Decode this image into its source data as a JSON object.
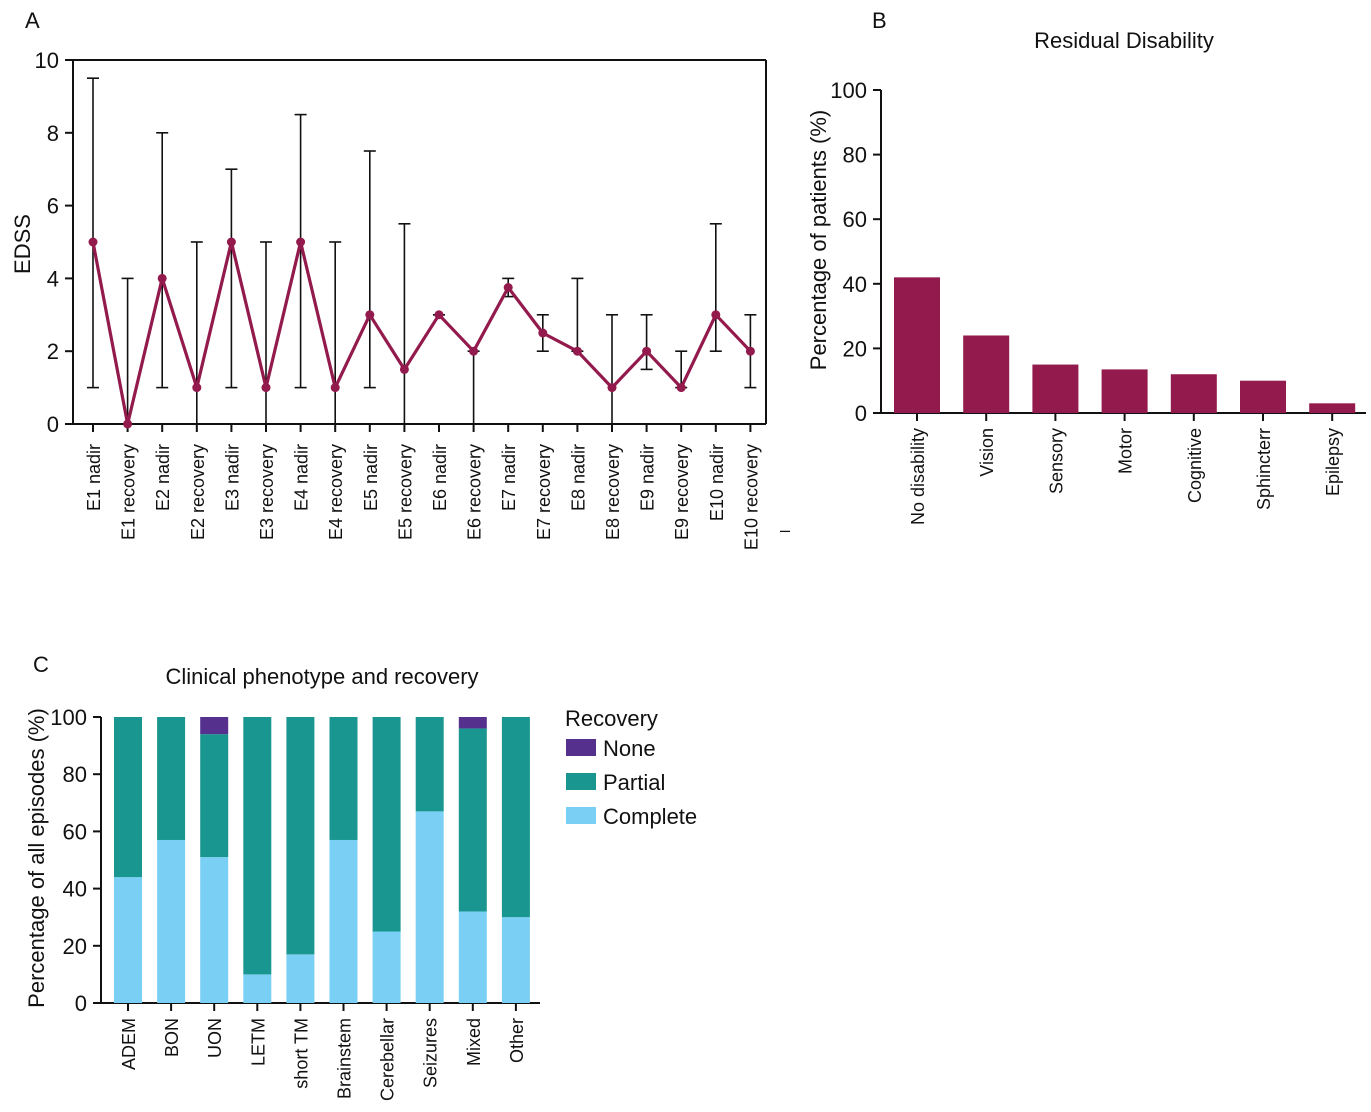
{
  "colors": {
    "maroon": "#931a4c",
    "none": "#55308d",
    "partial": "#1a9690",
    "complete": "#7ad0f4",
    "axis": "#111111"
  },
  "chart_data": [
    {
      "panel": "A",
      "type": "line",
      "title": "",
      "xlabel": "",
      "ylabel": "EDSS",
      "ylim": [
        0,
        10
      ],
      "yticks": [
        0,
        2,
        4,
        6,
        8,
        10
      ],
      "grid": false,
      "categories": [
        "E1 nadir",
        "E1 recovery",
        "E2 nadir",
        "E2 recovery",
        "E3 nadir",
        "E3 recovery",
        "E4 nadir",
        "E4 recovery",
        "E5 nadir",
        "E5 recovery",
        "E6 nadir",
        "E6 recovery",
        "E7 nadir",
        "E7 recovery",
        "E8 nadir",
        "E8 recovery",
        "E9 nadir",
        "E9 recovery",
        "E10 nadir",
        "E10 recovery"
      ],
      "series": [
        {
          "values": [
            5,
            0,
            4,
            1,
            5,
            1,
            5,
            1,
            3,
            1.5,
            3,
            2,
            3.75,
            2.5,
            2,
            1,
            2,
            1,
            3,
            2
          ],
          "error_low": [
            1,
            0,
            1,
            0,
            1,
            0,
            1,
            0,
            1,
            0,
            3,
            0,
            3.5,
            2,
            2,
            0,
            1.5,
            1,
            2,
            1
          ],
          "error_high": [
            9.5,
            4,
            8,
            5,
            7,
            5,
            8.5,
            5,
            7.5,
            5.5,
            3,
            2,
            4,
            3,
            4,
            3,
            3,
            2,
            5.5,
            3
          ]
        }
      ]
    },
    {
      "panel": "B",
      "type": "bar",
      "title": "Residual Disability",
      "xlabel": "",
      "ylabel": "Percentage of patients (%)",
      "ylim": [
        0,
        100
      ],
      "yticks": [
        0,
        20,
        40,
        60,
        80,
        100
      ],
      "grid": false,
      "categories": [
        "No disability",
        "Vision",
        "Sensory",
        "Motor",
        "Cognitive",
        "Sphincterr",
        "Epilepsy"
      ],
      "values": [
        42,
        24,
        15,
        13.5,
        12,
        10,
        3
      ]
    },
    {
      "panel": "C",
      "type": "bar",
      "stacked": true,
      "title": "Clinical phenotype and recovery",
      "xlabel": "",
      "ylabel": "Percentage of all episodes (%)",
      "ylim": [
        0,
        100
      ],
      "yticks": [
        0,
        20,
        40,
        60,
        80,
        100
      ],
      "grid": false,
      "legend_title": "Recovery",
      "legend_position": "right",
      "categories": [
        "ADEM",
        "BON",
        "UON",
        "LETM",
        "short TM",
        "Brainstem",
        "Cerebellar",
        "Seizures",
        "Mixed",
        "Other"
      ],
      "series": [
        {
          "name": "Complete",
          "values": [
            44,
            57,
            51,
            10,
            17,
            57,
            25,
            67,
            32,
            30
          ]
        },
        {
          "name": "Partial",
          "values": [
            56,
            43,
            43,
            90,
            83,
            43,
            75,
            33,
            64,
            70
          ]
        },
        {
          "name": "None",
          "values": [
            0,
            0,
            6,
            0,
            0,
            0,
            0,
            0,
            4,
            0
          ]
        }
      ],
      "legend": [
        "None",
        "Partial",
        "Complete"
      ]
    }
  ],
  "panels": {
    "a": "A",
    "b": "B",
    "c": "C"
  },
  "stray_mark": "–"
}
